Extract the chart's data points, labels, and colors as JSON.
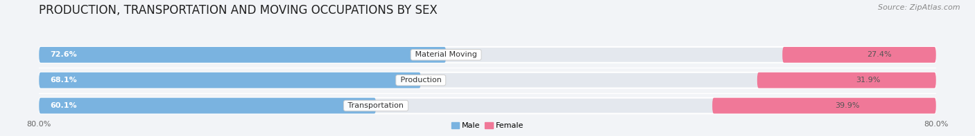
{
  "title": "PRODUCTION, TRANSPORTATION AND MOVING OCCUPATIONS BY SEX",
  "source": "Source: ZipAtlas.com",
  "categories": [
    "Material Moving",
    "Production",
    "Transportation"
  ],
  "male_values": [
    72.6,
    68.1,
    60.1
  ],
  "female_values": [
    27.4,
    31.9,
    39.9
  ],
  "male_color": "#7ab3e0",
  "female_color": "#f07898",
  "male_color_light": "#aecde8",
  "female_color_light": "#f5b0c8",
  "male_label": "Male",
  "female_label": "Female",
  "axis_limit": 80.0,
  "bg_color": "#f2f4f7",
  "bar_bg_color": "#e4e8ee",
  "title_fontsize": 12,
  "source_fontsize": 8,
  "label_fontsize": 8,
  "value_fontsize": 8
}
